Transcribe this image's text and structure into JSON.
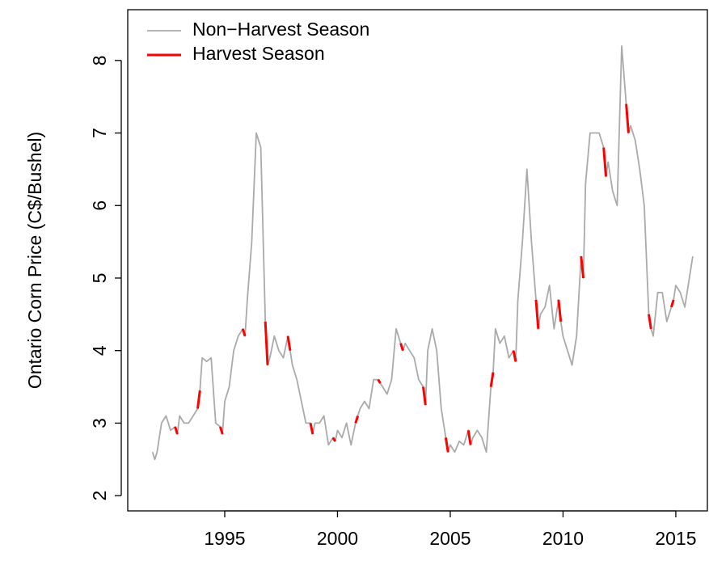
{
  "chart_data": {
    "type": "line",
    "ylabel": "Ontario Corn Price (C$/Bushel)",
    "x": [
      1991.8,
      1991.9,
      1992,
      1992.2,
      1992.4,
      1992.6,
      1992.8,
      1992.9,
      1993,
      1993.2,
      1993.4,
      1993.6,
      1993.8,
      1993.9,
      1994,
      1994.2,
      1994.4,
      1994.6,
      1994.8,
      1994.9,
      1995,
      1995.2,
      1995.4,
      1995.6,
      1995.8,
      1995.9,
      1996,
      1996.2,
      1996.4,
      1996.6,
      1996.8,
      1996.9,
      1997,
      1997.2,
      1997.4,
      1997.6,
      1997.8,
      1997.9,
      1998,
      1998.2,
      1998.4,
      1998.6,
      1998.8,
      1998.9,
      1999,
      1999.2,
      1999.4,
      1999.6,
      1999.8,
      1999.9,
      2000,
      2000.2,
      2000.4,
      2000.6,
      2000.8,
      2000.9,
      2001,
      2001.2,
      2001.4,
      2001.6,
      2001.8,
      2001.9,
      2002,
      2002.2,
      2002.4,
      2002.6,
      2002.8,
      2002.9,
      2003,
      2003.2,
      2003.4,
      2003.6,
      2003.8,
      2003.9,
      2004,
      2004.2,
      2004.4,
      2004.6,
      2004.8,
      2004.9,
      2005,
      2005.2,
      2005.4,
      2005.6,
      2005.8,
      2005.9,
      2006,
      2006.2,
      2006.4,
      2006.6,
      2006.8,
      2006.9,
      2007,
      2007.2,
      2007.4,
      2007.6,
      2007.8,
      2007.9,
      2008,
      2008.2,
      2008.4,
      2008.6,
      2008.8,
      2008.9,
      2009,
      2009.2,
      2009.4,
      2009.6,
      2009.8,
      2009.9,
      2010,
      2010.2,
      2010.4,
      2010.6,
      2010.8,
      2010.9,
      2011,
      2011.2,
      2011.4,
      2011.6,
      2011.8,
      2011.9,
      2012,
      2012.2,
      2012.4,
      2012.6,
      2012.8,
      2012.9,
      2013,
      2013.2,
      2013.4,
      2013.6,
      2013.8,
      2013.9,
      2014,
      2014.2,
      2014.4,
      2014.6,
      2014.8,
      2014.9,
      2015,
      2015.2,
      2015.4,
      2015.6,
      2015.75
    ],
    "series": [
      {
        "name": "Non−Harvest Season",
        "color": "#aaaaaa",
        "values": [
          2.6,
          2.5,
          2.6,
          3.0,
          3.1,
          2.9,
          2.95,
          2.85,
          3.1,
          3.0,
          3.0,
          3.1,
          3.2,
          3.45,
          3.9,
          3.85,
          3.9,
          3.0,
          2.95,
          2.85,
          3.3,
          3.5,
          4.0,
          4.2,
          4.3,
          4.2,
          4.7,
          5.5,
          7.0,
          6.8,
          4.4,
          3.8,
          3.9,
          4.2,
          4.0,
          3.9,
          4.2,
          4.0,
          3.8,
          3.6,
          3.3,
          3.0,
          3.0,
          2.85,
          3.0,
          3.0,
          3.1,
          2.7,
          2.8,
          2.75,
          2.9,
          2.8,
          3.0,
          2.7,
          3.0,
          3.1,
          3.2,
          3.3,
          3.2,
          3.6,
          3.6,
          3.55,
          3.5,
          3.4,
          3.6,
          4.3,
          4.1,
          4.0,
          4.1,
          4.0,
          3.9,
          3.6,
          3.5,
          3.25,
          4.0,
          4.3,
          4.0,
          3.2,
          2.8,
          2.6,
          2.7,
          2.6,
          2.75,
          2.7,
          2.9,
          2.7,
          2.8,
          2.9,
          2.8,
          2.6,
          3.5,
          3.7,
          4.3,
          4.1,
          4.2,
          3.9,
          4.0,
          3.85,
          4.7,
          5.5,
          6.5,
          5.5,
          4.7,
          4.3,
          4.5,
          4.6,
          4.9,
          4.3,
          4.7,
          4.4,
          4.2,
          4.0,
          3.8,
          4.2,
          5.3,
          5.0,
          6.3,
          7.0,
          7.0,
          7.0,
          6.8,
          6.4,
          6.6,
          6.2,
          6.0,
          8.2,
          7.4,
          7.0,
          7.1,
          6.9,
          6.5,
          6.0,
          4.5,
          4.3,
          4.2,
          4.8,
          4.8,
          4.4,
          4.6,
          4.7,
          4.9,
          4.8,
          4.6,
          5.0,
          5.3
        ]
      },
      {
        "name": "Harvest Season",
        "color": "#ff0000",
        "values": [
          null,
          2.5,
          null,
          null,
          null,
          null,
          2.95,
          2.85,
          null,
          null,
          null,
          null,
          3.2,
          3.45,
          null,
          null,
          null,
          null,
          2.95,
          2.85,
          null,
          null,
          null,
          null,
          4.3,
          4.2,
          null,
          null,
          null,
          null,
          4.4,
          3.8,
          null,
          null,
          null,
          null,
          4.2,
          4.0,
          null,
          null,
          null,
          null,
          3.0,
          2.85,
          null,
          null,
          null,
          null,
          2.8,
          2.75,
          null,
          null,
          null,
          null,
          3.0,
          3.1,
          null,
          null,
          null,
          null,
          3.6,
          3.55,
          null,
          null,
          null,
          null,
          4.1,
          4.0,
          null,
          null,
          null,
          null,
          3.5,
          3.25,
          null,
          null,
          null,
          null,
          2.8,
          2.6,
          null,
          null,
          null,
          null,
          2.9,
          2.7,
          null,
          null,
          null,
          null,
          3.5,
          3.7,
          null,
          null,
          null,
          null,
          4.0,
          3.85,
          null,
          null,
          null,
          null,
          4.7,
          4.3,
          null,
          null,
          null,
          null,
          4.7,
          4.4,
          null,
          null,
          null,
          null,
          5.3,
          5.0,
          null,
          null,
          null,
          null,
          6.8,
          6.4,
          null,
          null,
          null,
          null,
          7.4,
          7.0,
          null,
          null,
          null,
          null,
          4.5,
          4.3,
          null,
          null,
          null,
          null,
          4.6,
          4.7,
          null,
          null,
          null,
          null,
          null
        ]
      }
    ],
    "xlim": [
      1990.7,
      2016.4
    ],
    "xticks": [
      1995,
      2000,
      2005,
      2010,
      2015
    ],
    "ylim": [
      1.79,
      8.7
    ],
    "yticks": [
      2,
      3,
      4,
      5,
      6,
      7,
      8
    ],
    "legend": "top-left"
  }
}
